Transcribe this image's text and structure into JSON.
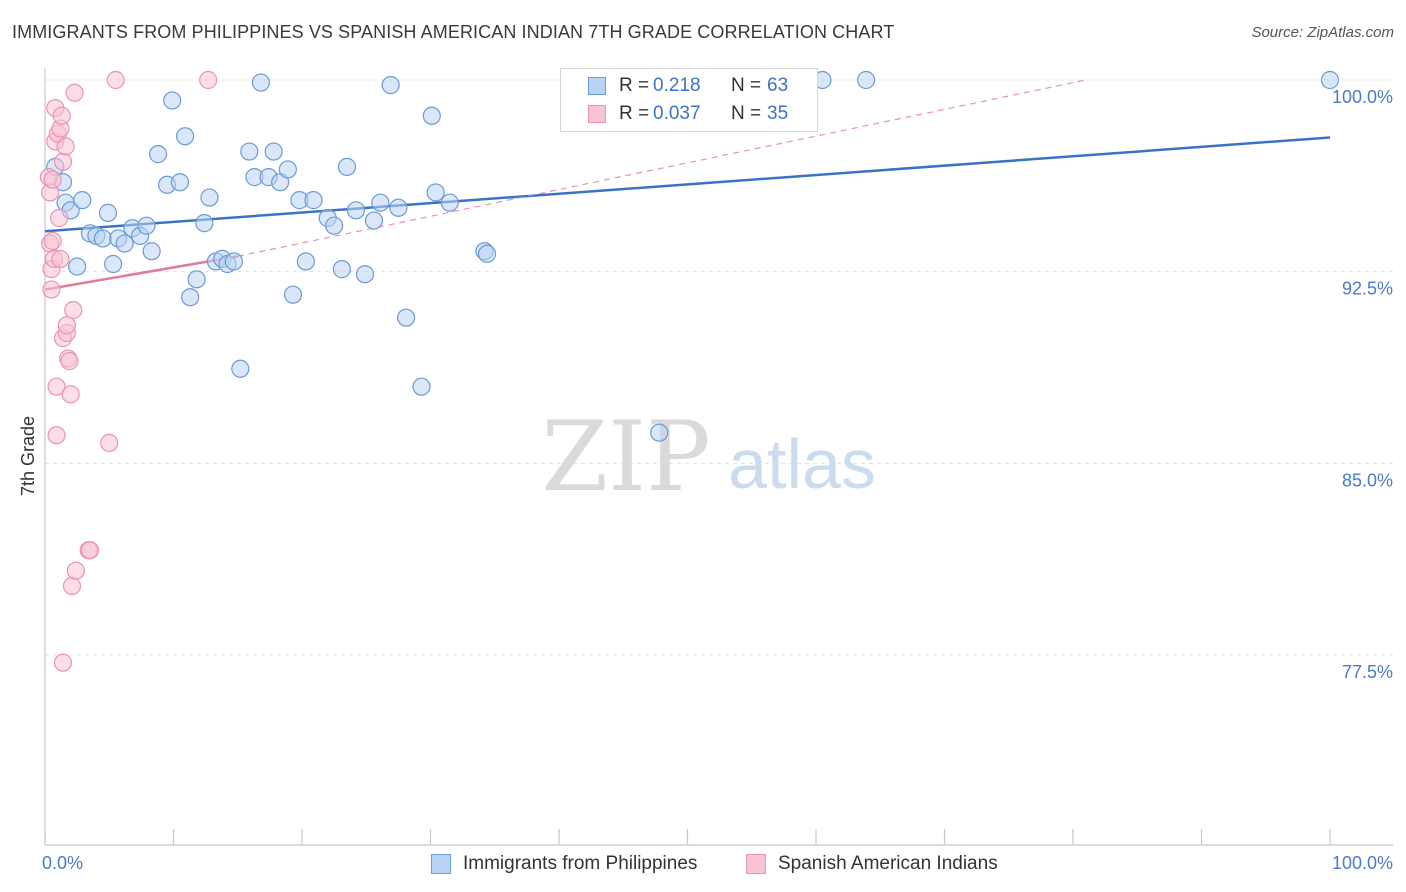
{
  "header": {
    "title": "IMMIGRANTS FROM PHILIPPINES VS SPANISH AMERICAN INDIAN 7TH GRADE CORRELATION CHART",
    "source": "Source: ZipAtlas.com"
  },
  "watermark": {
    "zip": "ZIP",
    "atlas": "atlas"
  },
  "legend": {
    "series": [
      {
        "r_label": "R =",
        "r_value": "0.218",
        "n_label": "N =",
        "n_value": "63"
      },
      {
        "r_label": "R =",
        "r_value": "0.037",
        "n_label": "N =",
        "n_value": "35"
      }
    ]
  },
  "colors": {
    "blue": "#3b73c4",
    "blue_fill": "#b9d3f3",
    "blue_edge": "#6a9ad8",
    "pink": "#e07a9b",
    "pink_fill": "#f8c3d3",
    "pink_edge": "#eb93b1",
    "grid": "#e1e1e1",
    "axis_text": "#4a7bc8"
  },
  "chart_data": {
    "type": "scatter",
    "title": "IMMIGRANTS FROM PHILIPPINES VS SPANISH AMERICAN INDIAN 7TH GRADE CORRELATION CHART",
    "xlabel": "",
    "ylabel": "7th Grade",
    "xlim": [
      0,
      100
    ],
    "ylim": [
      70.5,
      100.8
    ],
    "x_tick_labels": [
      "0.0%",
      "100.0%"
    ],
    "y_ticks": [
      100.0,
      92.5,
      85.0,
      77.5
    ],
    "y_tick_labels": [
      "100.0%",
      "92.5%",
      "85.0%",
      "77.5%"
    ],
    "grid": true,
    "legend_position": "bottom",
    "series": [
      {
        "name": "Immigrants from Philippines",
        "color": "blue",
        "R": 0.218,
        "N": 63,
        "trend": {
          "x": [
            0,
            100
          ],
          "y": [
            94.08,
            97.75
          ],
          "style": "solid"
        },
        "points": [
          [
            0.8,
            96.6
          ],
          [
            1.4,
            96.0
          ],
          [
            1.6,
            95.2
          ],
          [
            2.0,
            94.9
          ],
          [
            2.5,
            92.7
          ],
          [
            2.9,
            95.3
          ],
          [
            3.5,
            94.0
          ],
          [
            4.0,
            93.9
          ],
          [
            4.5,
            93.8
          ],
          [
            4.9,
            94.8
          ],
          [
            5.3,
            92.8
          ],
          [
            5.7,
            93.8
          ],
          [
            6.2,
            93.6
          ],
          [
            6.8,
            94.2
          ],
          [
            7.4,
            93.9
          ],
          [
            7.9,
            94.3
          ],
          [
            8.3,
            93.3
          ],
          [
            8.8,
            97.1
          ],
          [
            9.5,
            95.9
          ],
          [
            9.9,
            99.2
          ],
          [
            10.5,
            96.0
          ],
          [
            10.9,
            97.8
          ],
          [
            11.3,
            91.5
          ],
          [
            11.8,
            92.2
          ],
          [
            12.4,
            94.4
          ],
          [
            12.8,
            95.4
          ],
          [
            13.3,
            92.9
          ],
          [
            13.8,
            93.0
          ],
          [
            14.2,
            92.8
          ],
          [
            14.7,
            92.9
          ],
          [
            15.2,
            88.7
          ],
          [
            15.9,
            97.2
          ],
          [
            16.3,
            96.2
          ],
          [
            16.8,
            99.9
          ],
          [
            17.4,
            96.2
          ],
          [
            17.8,
            97.2
          ],
          [
            18.3,
            96.0
          ],
          [
            18.9,
            96.5
          ],
          [
            19.3,
            91.6
          ],
          [
            19.8,
            95.3
          ],
          [
            20.3,
            92.9
          ],
          [
            20.9,
            95.3
          ],
          [
            22.0,
            94.6
          ],
          [
            22.5,
            94.3
          ],
          [
            23.1,
            92.6
          ],
          [
            23.5,
            96.6
          ],
          [
            24.2,
            94.9
          ],
          [
            24.9,
            92.4
          ],
          [
            25.6,
            94.5
          ],
          [
            26.1,
            95.2
          ],
          [
            26.9,
            99.8
          ],
          [
            27.5,
            95.0
          ],
          [
            28.1,
            90.7
          ],
          [
            29.3,
            88.0
          ],
          [
            30.1,
            98.6
          ],
          [
            30.4,
            95.6
          ],
          [
            31.5,
            95.2
          ],
          [
            34.2,
            93.3
          ],
          [
            34.4,
            93.2
          ],
          [
            47.8,
            86.2
          ],
          [
            60.5,
            100.0
          ],
          [
            63.9,
            100.0
          ],
          [
            100.0,
            100.0
          ]
        ]
      },
      {
        "name": "Spanish American Indians",
        "color": "pink",
        "R": 0.037,
        "N": 35,
        "trend": {
          "x": [
            0,
            15
          ],
          "y": [
            91.8,
            93.1
          ],
          "style": "solid"
        },
        "trend_extended": {
          "x": [
            15,
            81
          ],
          "y": [
            93.1,
            100.0
          ],
          "style": "dashed"
        },
        "points": [
          [
            0.3,
            96.2
          ],
          [
            0.4,
            95.6
          ],
          [
            0.4,
            93.6
          ],
          [
            0.5,
            91.8
          ],
          [
            0.5,
            92.6
          ],
          [
            0.6,
            96.1
          ],
          [
            0.6,
            93.7
          ],
          [
            0.7,
            93.0
          ],
          [
            0.8,
            98.9
          ],
          [
            0.8,
            97.6
          ],
          [
            0.9,
            88.0
          ],
          [
            0.9,
            86.1
          ],
          [
            1.0,
            97.9
          ],
          [
            1.1,
            94.6
          ],
          [
            1.2,
            98.1
          ],
          [
            1.2,
            93.0
          ],
          [
            1.3,
            98.6
          ],
          [
            1.4,
            96.8
          ],
          [
            1.4,
            89.9
          ],
          [
            1.4,
            77.2
          ],
          [
            1.6,
            97.4
          ],
          [
            1.7,
            90.1
          ],
          [
            1.7,
            90.4
          ],
          [
            1.8,
            89.1
          ],
          [
            1.9,
            89.0
          ],
          [
            2.0,
            87.7
          ],
          [
            2.1,
            80.2
          ],
          [
            2.2,
            91.0
          ],
          [
            2.3,
            99.5
          ],
          [
            2.4,
            80.8
          ],
          [
            5.0,
            85.8
          ],
          [
            3.4,
            81.6
          ],
          [
            3.5,
            81.6
          ],
          [
            5.5,
            100.0
          ],
          [
            12.7,
            100.0
          ]
        ]
      }
    ]
  },
  "bottom_legend": [
    {
      "label": "Immigrants from Philippines"
    },
    {
      "label": "Spanish American Indians"
    }
  ]
}
